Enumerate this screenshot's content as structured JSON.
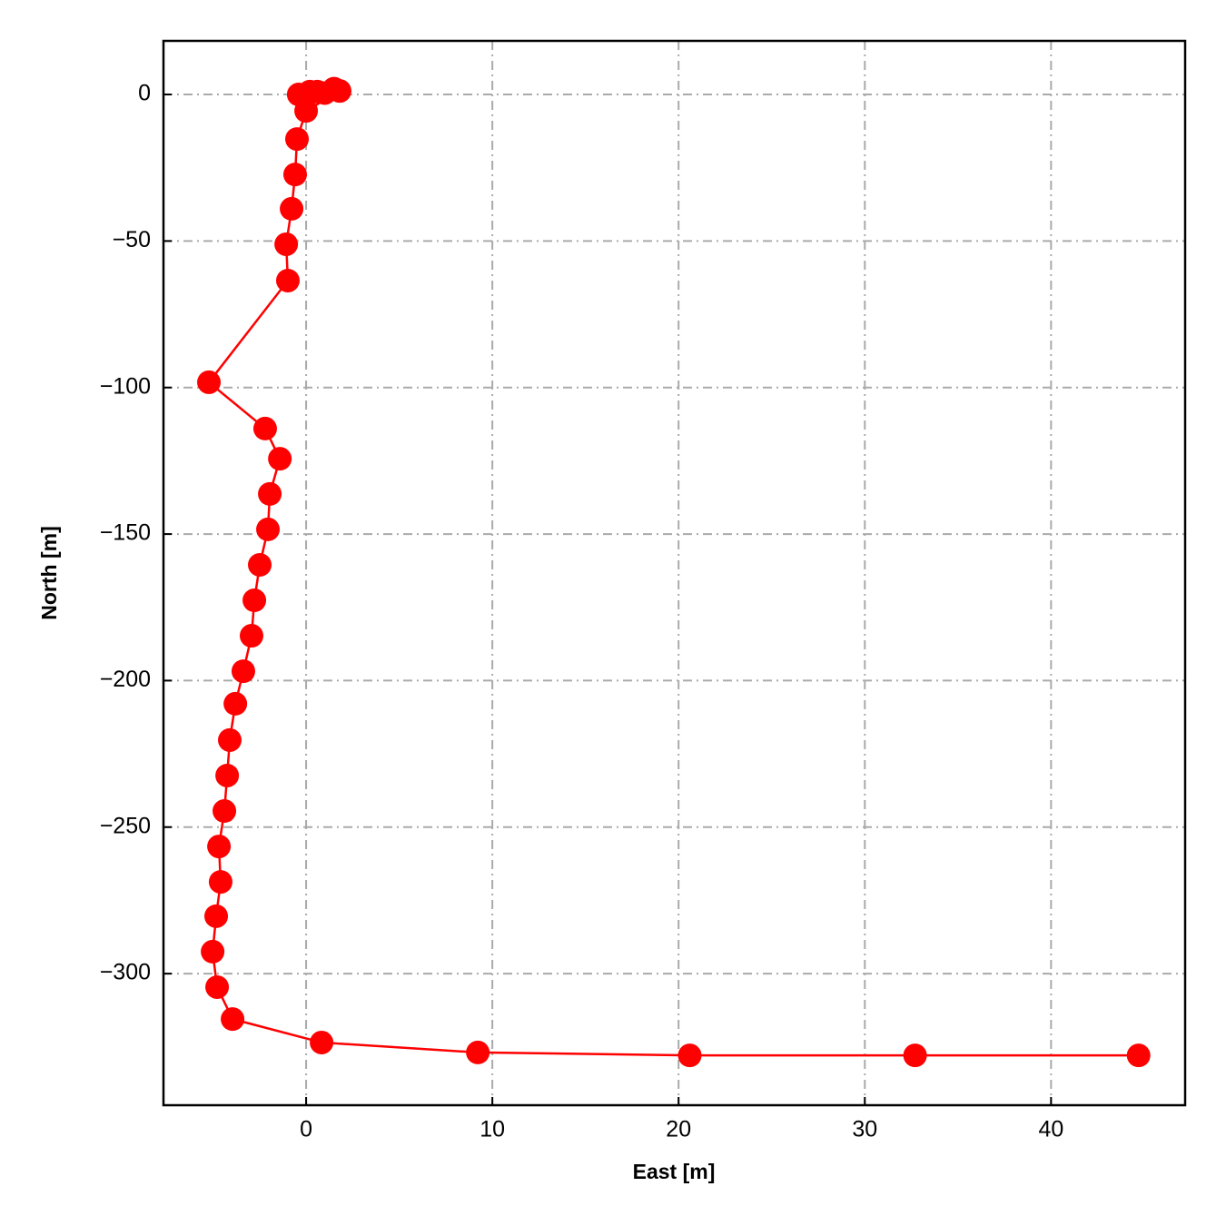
{
  "chart_data": {
    "type": "line",
    "xlabel": "East [m]",
    "ylabel": "North [m]",
    "x": [
      -0.4,
      0.2,
      0.6,
      1.0,
      1.5,
      1.8,
      0.0,
      -0.49,
      -0.59,
      -0.78,
      -1.07,
      -0.98,
      -5.22,
      -2.2,
      -1.41,
      -1.95,
      -2.05,
      -2.49,
      -2.78,
      -2.93,
      -3.37,
      -3.8,
      -4.1,
      -4.24,
      -4.39,
      -4.68,
      -4.59,
      -4.83,
      -5.02,
      -4.78,
      -3.95,
      0.83,
      9.22,
      20.6,
      32.7,
      44.7
    ],
    "series": [
      {
        "color": "#ff0000",
        "values": [
          0,
          1,
          1,
          0.5,
          2,
          1.2,
          -5.6,
          -15.2,
          -27.3,
          -39,
          -51.1,
          -63.5,
          -98.2,
          -114,
          -124.3,
          -136.3,
          -148.4,
          -160.5,
          -172.6,
          -184.7,
          -196.8,
          -207.9,
          -220.3,
          -232.4,
          -244.5,
          -256.6,
          -268.7,
          -280.4,
          -292.5,
          -304.6,
          -315.5,
          -323.5,
          -326.9,
          -327.9,
          -327.9,
          -327.9
        ]
      }
    ],
    "xlim": [
      -7.66,
      47.2
    ],
    "ylim": [
      -344.9,
      18.3
    ],
    "xticks": [
      0,
      10,
      20,
      30,
      40
    ],
    "yticks": [
      0,
      {
        "value": -50,
        "label": "−50"
      },
      {
        "value": -100,
        "label": "−100"
      },
      {
        "value": -150,
        "label": "−150"
      },
      {
        "value": -200,
        "label": "−200"
      },
      {
        "value": -250,
        "label": "−250"
      },
      {
        "value": -300,
        "label": "−300"
      }
    ],
    "grid": true
  }
}
